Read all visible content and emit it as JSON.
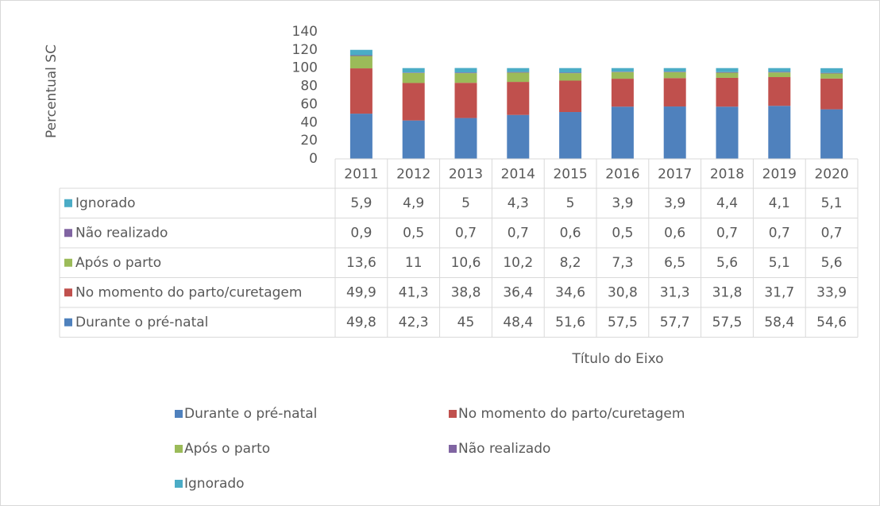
{
  "chart_data": {
    "type": "stacked_bar",
    "y_label": "Percentual SC",
    "x_label": "Título do Eixo",
    "categories": [
      "2011",
      "2012",
      "2013",
      "2014",
      "2015",
      "2016",
      "2017",
      "2018",
      "2019",
      "2020"
    ],
    "series": [
      {
        "name": "Durante o pré-natal",
        "color": "#4f81bd",
        "values": [
          49.8,
          42.3,
          45,
          48.4,
          51.6,
          57.5,
          57.7,
          57.5,
          58.4,
          54.6
        ],
        "value_labels": [
          "49,8",
          "42,3",
          "45",
          "48,4",
          "51,6",
          "57,5",
          "57,7",
          "57,5",
          "58,4",
          "54,6"
        ]
      },
      {
        "name": "No momento do parto/curetagem",
        "color": "#c0504d",
        "values": [
          49.9,
          41.3,
          38.8,
          36.4,
          34.6,
          30.8,
          31.3,
          31.8,
          31.7,
          33.9
        ],
        "value_labels": [
          "49,9",
          "41,3",
          "38,8",
          "36,4",
          "34,6",
          "30,8",
          "31,3",
          "31,8",
          "31,7",
          "33,9"
        ]
      },
      {
        "name": "Após o parto",
        "color": "#9bbb59",
        "values": [
          13.6,
          11,
          10.6,
          10.2,
          8.2,
          7.3,
          6.5,
          5.6,
          5.1,
          5.6
        ],
        "value_labels": [
          "13,6",
          "11",
          "10,6",
          "10,2",
          "8,2",
          "7,3",
          "6,5",
          "5,6",
          "5,1",
          "5,6"
        ]
      },
      {
        "name": "Não realizado",
        "color": "#8064a2",
        "values": [
          0.9,
          0.5,
          0.7,
          0.7,
          0.6,
          0.5,
          0.6,
          0.7,
          0.7,
          0.7
        ],
        "value_labels": [
          "0,9",
          "0,5",
          "0,7",
          "0,7",
          "0,6",
          "0,5",
          "0,6",
          "0,7",
          "0,7",
          "0,7"
        ]
      },
      {
        "name": "Ignorado",
        "color": "#4bacc6",
        "values": [
          5.9,
          4.9,
          5,
          4.3,
          5,
          3.9,
          3.9,
          4.4,
          4.1,
          5.1
        ],
        "value_labels": [
          "5,9",
          "4,9",
          "5",
          "4,3",
          "5",
          "3,9",
          "3,9",
          "4,4",
          "4,1",
          "5,1"
        ]
      }
    ],
    "ylim": [
      0,
      140
    ],
    "yticks": [
      0,
      20,
      40,
      60,
      80,
      100,
      120,
      140
    ]
  }
}
